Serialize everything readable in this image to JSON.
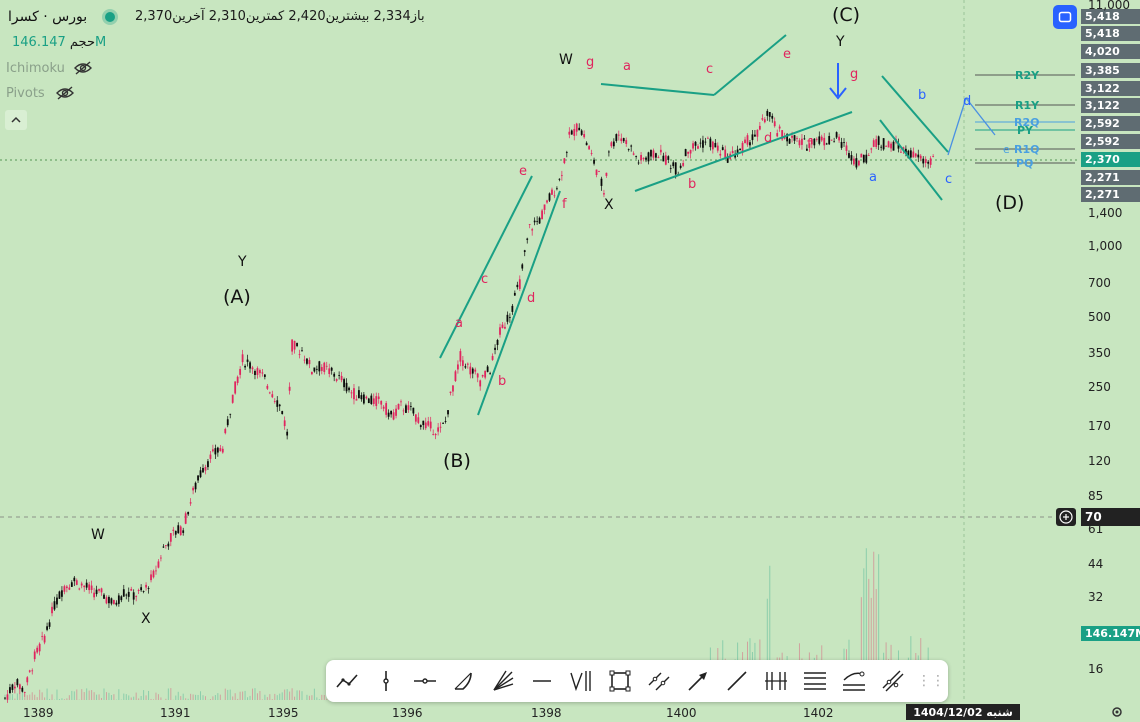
{
  "header": {
    "symbol": "بورس · کسرا",
    "open_label": "باز",
    "open_value": "2,334",
    "high_label": "بیشترین",
    "high_value": "2,420",
    "low_label": "کمترین",
    "low_value": "2,310",
    "last_label": "آخرین",
    "last_value": "2,370",
    "volume_label": "حجم",
    "volume_value": "146.147M",
    "indicator_1": "Ichimoku",
    "indicator_2": "Pivots"
  },
  "price_tags": {
    "top": "5,418",
    "t1": "5,418",
    "t2": "4,020",
    "t3": "3,385",
    "t4": "3,122",
    "t5": "3,122",
    "t6": "2,592",
    "t7": "2,592",
    "current": "2,370",
    "t9": "2,271",
    "t10": "2,271",
    "crosshair": "70",
    "volume": "146.147M"
  },
  "pivot_labels": {
    "r2y": "R2Y",
    "r1y": "R1Y",
    "r2q": "R2Q",
    "py": "PY",
    "r1q": "R1Q",
    "pq": "PQ"
  },
  "chart_data": {
    "type": "candlestick",
    "y_scale": "log",
    "y_ticks": [
      "11,000",
      "1,400",
      "1,000",
      "700",
      "500",
      "350",
      "250",
      "170",
      "120",
      "85",
      "61",
      "44",
      "32",
      "16"
    ],
    "x_ticks": [
      "1389",
      "1391",
      "1395",
      "1396",
      "1398",
      "1400",
      "1402"
    ],
    "date_label": "شنبه 1404/12/02",
    "wave_labels": [
      "W",
      "X",
      "Y",
      "(A)",
      "(B)",
      "a",
      "b",
      "c",
      "d",
      "e",
      "f",
      "g",
      "W",
      "X",
      "a",
      "b",
      "c",
      "d",
      "e",
      "f",
      "g",
      "(C)",
      "Y",
      "a",
      "b",
      "c",
      "d",
      "(D)"
    ],
    "close_path": [
      [
        0,
        12
      ],
      [
        10,
        14
      ],
      [
        20,
        13
      ],
      [
        30,
        18
      ],
      [
        40,
        22
      ],
      [
        50,
        30
      ],
      [
        60,
        36
      ],
      [
        70,
        38
      ],
      [
        80,
        36
      ],
      [
        90,
        34
      ],
      [
        100,
        33
      ],
      [
        110,
        30
      ],
      [
        120,
        34
      ],
      [
        130,
        33
      ],
      [
        140,
        34
      ],
      [
        150,
        40
      ],
      [
        160,
        52
      ],
      [
        170,
        60
      ],
      [
        180,
        64
      ],
      [
        190,
        90
      ],
      [
        200,
        115
      ],
      [
        210,
        130
      ],
      [
        220,
        140
      ],
      [
        230,
        230
      ],
      [
        240,
        330
      ],
      [
        250,
        310
      ],
      [
        260,
        280
      ],
      [
        270,
        240
      ],
      [
        280,
        200
      ],
      [
        285,
        160
      ],
      [
        290,
        380
      ],
      [
        300,
        360
      ],
      [
        310,
        300
      ],
      [
        320,
        310
      ],
      [
        330,
        290
      ],
      [
        340,
        270
      ],
      [
        350,
        240
      ],
      [
        360,
        230
      ],
      [
        370,
        220
      ],
      [
        380,
        220
      ],
      [
        390,
        190
      ],
      [
        400,
        210
      ],
      [
        410,
        200
      ],
      [
        420,
        180
      ],
      [
        430,
        170
      ],
      [
        440,
        165
      ],
      [
        445,
        180
      ],
      [
        450,
        230
      ],
      [
        460,
        340
      ],
      [
        470,
        300
      ],
      [
        480,
        270
      ],
      [
        490,
        300
      ],
      [
        500,
        430
      ],
      [
        510,
        520
      ],
      [
        520,
        700
      ],
      [
        530,
        1200
      ],
      [
        540,
        1300
      ],
      [
        550,
        1600
      ],
      [
        560,
        1900
      ],
      [
        570,
        2900
      ],
      [
        580,
        3300
      ],
      [
        590,
        2600
      ],
      [
        600,
        2000
      ],
      [
        605,
        1700
      ],
      [
        610,
        2600
      ],
      [
        620,
        3000
      ],
      [
        630,
        2700
      ],
      [
        640,
        2300
      ],
      [
        650,
        2400
      ],
      [
        660,
        2500
      ],
      [
        670,
        2300
      ],
      [
        680,
        2100
      ],
      [
        690,
        2600
      ],
      [
        700,
        2700
      ],
      [
        710,
        2800
      ],
      [
        720,
        2600
      ],
      [
        730,
        2400
      ],
      [
        740,
        2500
      ],
      [
        750,
        2800
      ],
      [
        760,
        3000
      ],
      [
        770,
        3700
      ],
      [
        780,
        3100
      ],
      [
        790,
        2900
      ],
      [
        800,
        2800
      ],
      [
        810,
        2700
      ],
      [
        820,
        2900
      ],
      [
        830,
        2800
      ],
      [
        840,
        2900
      ],
      [
        850,
        2600
      ],
      [
        860,
        2300
      ],
      [
        870,
        2400
      ],
      [
        880,
        2800
      ],
      [
        890,
        2700
      ],
      [
        900,
        2700
      ],
      [
        910,
        2500
      ],
      [
        920,
        2400
      ],
      [
        930,
        2300
      ],
      [
        940,
        2370
      ]
    ]
  }
}
